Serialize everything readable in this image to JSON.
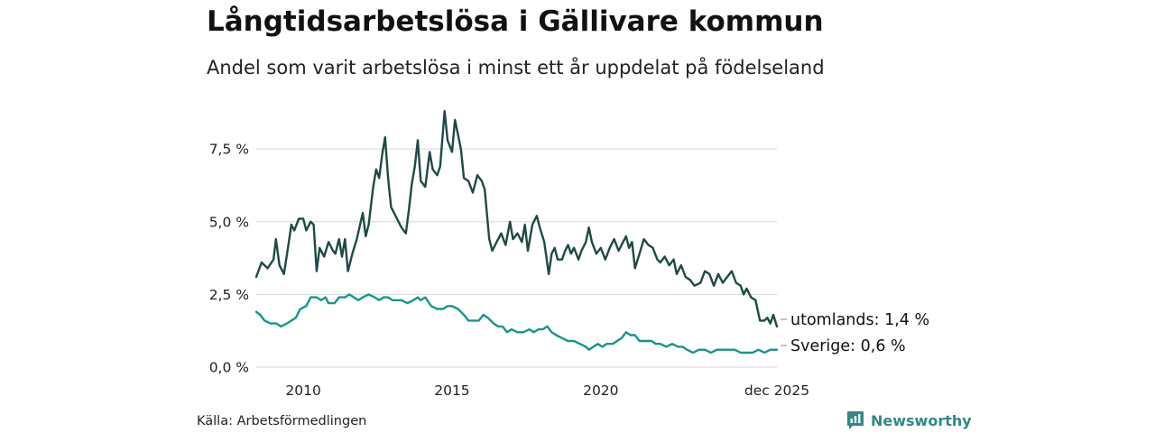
{
  "title": "Långtidsarbetslösa i Gällivare kommun",
  "subtitle": "Andel som varit arbetslösa i minst ett år uppdelat på födelseland",
  "source": "Källa: Arbetsförmedlingen",
  "brand": "Newsworthy",
  "colors": {
    "utomlands": "#1f4a45",
    "sverige": "#13978a",
    "grid": "#dddddd",
    "brand": "#2f8a83"
  },
  "chart_data": {
    "type": "line",
    "title": "Långtidsarbetslösa i Gällivare kommun",
    "subtitle": "Andel som varit arbetslösa i minst ett år uppdelat på födelseland",
    "xlabel": "",
    "ylabel": "",
    "xlim": [
      2008.42,
      2025.92
    ],
    "ylim": [
      0,
      8.9
    ],
    "x_ticks": [
      {
        "value": 2010,
        "label": "2010"
      },
      {
        "value": 2015,
        "label": "2015"
      },
      {
        "value": 2020,
        "label": "2020"
      },
      {
        "value": 2025.92,
        "label": "dec 2025"
      }
    ],
    "y_ticks": [
      {
        "value": 0,
        "label": "0,0 %"
      },
      {
        "value": 2.5,
        "label": "2,5 %"
      },
      {
        "value": 5.0,
        "label": "5,0 %"
      },
      {
        "value": 7.5,
        "label": "7,5 %"
      }
    ],
    "grid": true,
    "series": [
      {
        "name": "utomlands",
        "end_label": "utomlands: 1,4 %",
        "color": "#1f4a45",
        "points": [
          [
            2008.42,
            3.1
          ],
          [
            2008.6,
            3.6
          ],
          [
            2008.8,
            3.4
          ],
          [
            2009.0,
            3.7
          ],
          [
            2009.08,
            4.4
          ],
          [
            2009.2,
            3.5
          ],
          [
            2009.35,
            3.2
          ],
          [
            2009.5,
            4.2
          ],
          [
            2009.6,
            4.9
          ],
          [
            2009.7,
            4.7
          ],
          [
            2009.85,
            5.1
          ],
          [
            2010.0,
            5.1
          ],
          [
            2010.1,
            4.7
          ],
          [
            2010.25,
            5.0
          ],
          [
            2010.35,
            4.9
          ],
          [
            2010.45,
            3.3
          ],
          [
            2010.55,
            4.1
          ],
          [
            2010.7,
            3.8
          ],
          [
            2010.85,
            4.3
          ],
          [
            2011.0,
            4.0
          ],
          [
            2011.08,
            3.9
          ],
          [
            2011.2,
            4.4
          ],
          [
            2011.3,
            3.8
          ],
          [
            2011.4,
            4.4
          ],
          [
            2011.5,
            3.3
          ],
          [
            2011.65,
            3.9
          ],
          [
            2011.8,
            4.4
          ],
          [
            2012.0,
            5.3
          ],
          [
            2012.1,
            4.5
          ],
          [
            2012.2,
            4.9
          ],
          [
            2012.35,
            6.2
          ],
          [
            2012.45,
            6.8
          ],
          [
            2012.55,
            6.5
          ],
          [
            2012.65,
            7.3
          ],
          [
            2012.75,
            7.9
          ],
          [
            2012.85,
            6.5
          ],
          [
            2012.95,
            5.5
          ],
          [
            2013.05,
            5.3
          ],
          [
            2013.15,
            5.1
          ],
          [
            2013.3,
            4.8
          ],
          [
            2013.45,
            4.6
          ],
          [
            2013.55,
            5.4
          ],
          [
            2013.65,
            6.3
          ],
          [
            2013.75,
            6.9
          ],
          [
            2013.85,
            7.8
          ],
          [
            2013.95,
            6.4
          ],
          [
            2014.1,
            6.2
          ],
          [
            2014.25,
            7.4
          ],
          [
            2014.35,
            6.8
          ],
          [
            2014.5,
            6.6
          ],
          [
            2014.6,
            6.9
          ],
          [
            2014.75,
            8.8
          ],
          [
            2014.85,
            7.8
          ],
          [
            2015.0,
            7.4
          ],
          [
            2015.1,
            8.5
          ],
          [
            2015.2,
            8.0
          ],
          [
            2015.3,
            7.5
          ],
          [
            2015.4,
            6.5
          ],
          [
            2015.55,
            6.4
          ],
          [
            2015.7,
            6.0
          ],
          [
            2015.85,
            6.6
          ],
          [
            2016.0,
            6.4
          ],
          [
            2016.1,
            6.1
          ],
          [
            2016.25,
            4.4
          ],
          [
            2016.35,
            4.0
          ],
          [
            2016.5,
            4.3
          ],
          [
            2016.65,
            4.6
          ],
          [
            2016.8,
            4.2
          ],
          [
            2016.95,
            5.0
          ],
          [
            2017.05,
            4.4
          ],
          [
            2017.2,
            4.6
          ],
          [
            2017.35,
            4.3
          ],
          [
            2017.45,
            4.9
          ],
          [
            2017.55,
            4.0
          ],
          [
            2017.7,
            4.9
          ],
          [
            2017.85,
            5.2
          ],
          [
            2017.95,
            4.8
          ],
          [
            2018.1,
            4.3
          ],
          [
            2018.25,
            3.2
          ],
          [
            2018.35,
            3.9
          ],
          [
            2018.45,
            4.1
          ],
          [
            2018.55,
            3.7
          ],
          [
            2018.7,
            3.7
          ],
          [
            2018.8,
            4.0
          ],
          [
            2018.9,
            4.2
          ],
          [
            2019.0,
            3.9
          ],
          [
            2019.1,
            4.1
          ],
          [
            2019.25,
            3.7
          ],
          [
            2019.35,
            4.0
          ],
          [
            2019.5,
            4.3
          ],
          [
            2019.6,
            4.8
          ],
          [
            2019.7,
            4.3
          ],
          [
            2019.85,
            3.9
          ],
          [
            2020.0,
            4.1
          ],
          [
            2020.15,
            3.7
          ],
          [
            2020.3,
            4.1
          ],
          [
            2020.45,
            4.4
          ],
          [
            2020.6,
            4.0
          ],
          [
            2020.75,
            4.3
          ],
          [
            2020.85,
            4.5
          ],
          [
            2020.95,
            4.1
          ],
          [
            2021.05,
            4.3
          ],
          [
            2021.15,
            3.4
          ],
          [
            2021.3,
            3.9
          ],
          [
            2021.45,
            4.4
          ],
          [
            2021.6,
            4.2
          ],
          [
            2021.75,
            4.1
          ],
          [
            2021.9,
            3.7
          ],
          [
            2022.0,
            3.6
          ],
          [
            2022.15,
            3.8
          ],
          [
            2022.3,
            3.5
          ],
          [
            2022.45,
            3.7
          ],
          [
            2022.55,
            3.2
          ],
          [
            2022.7,
            3.5
          ],
          [
            2022.85,
            3.1
          ],
          [
            2023.0,
            3.0
          ],
          [
            2023.15,
            2.8
          ],
          [
            2023.35,
            2.9
          ],
          [
            2023.5,
            3.3
          ],
          [
            2023.65,
            3.2
          ],
          [
            2023.8,
            2.8
          ],
          [
            2023.95,
            3.2
          ],
          [
            2024.1,
            2.9
          ],
          [
            2024.25,
            3.1
          ],
          [
            2024.4,
            3.3
          ],
          [
            2024.55,
            2.9
          ],
          [
            2024.7,
            2.8
          ],
          [
            2024.8,
            2.5
          ],
          [
            2024.9,
            2.7
          ],
          [
            2025.05,
            2.4
          ],
          [
            2025.2,
            2.3
          ],
          [
            2025.35,
            1.6
          ],
          [
            2025.5,
            1.6
          ],
          [
            2025.6,
            1.7
          ],
          [
            2025.7,
            1.5
          ],
          [
            2025.8,
            1.8
          ],
          [
            2025.92,
            1.4
          ]
        ]
      },
      {
        "name": "Sverige",
        "end_label": "Sverige: 0,6 %",
        "color": "#13978a",
        "points": [
          [
            2008.42,
            1.9
          ],
          [
            2008.55,
            1.8
          ],
          [
            2008.7,
            1.6
          ],
          [
            2008.9,
            1.5
          ],
          [
            2009.1,
            1.5
          ],
          [
            2009.25,
            1.4
          ],
          [
            2009.45,
            1.5
          ],
          [
            2009.6,
            1.6
          ],
          [
            2009.75,
            1.7
          ],
          [
            2009.9,
            2.0
          ],
          [
            2010.1,
            2.1
          ],
          [
            2010.25,
            2.4
          ],
          [
            2010.45,
            2.4
          ],
          [
            2010.6,
            2.3
          ],
          [
            2010.75,
            2.4
          ],
          [
            2010.85,
            2.2
          ],
          [
            2011.05,
            2.2
          ],
          [
            2011.2,
            2.4
          ],
          [
            2011.4,
            2.4
          ],
          [
            2011.55,
            2.5
          ],
          [
            2011.7,
            2.4
          ],
          [
            2011.85,
            2.3
          ],
          [
            2012.0,
            2.4
          ],
          [
            2012.2,
            2.5
          ],
          [
            2012.4,
            2.4
          ],
          [
            2012.55,
            2.3
          ],
          [
            2012.7,
            2.4
          ],
          [
            2012.85,
            2.4
          ],
          [
            2013.0,
            2.3
          ],
          [
            2013.15,
            2.3
          ],
          [
            2013.3,
            2.3
          ],
          [
            2013.5,
            2.2
          ],
          [
            2013.7,
            2.3
          ],
          [
            2013.85,
            2.4
          ],
          [
            2013.95,
            2.3
          ],
          [
            2014.1,
            2.4
          ],
          [
            2014.3,
            2.1
          ],
          [
            2014.5,
            2.0
          ],
          [
            2014.7,
            2.0
          ],
          [
            2014.85,
            2.1
          ],
          [
            2015.0,
            2.1
          ],
          [
            2015.2,
            2.0
          ],
          [
            2015.4,
            1.8
          ],
          [
            2015.55,
            1.6
          ],
          [
            2015.7,
            1.6
          ],
          [
            2015.9,
            1.6
          ],
          [
            2016.05,
            1.8
          ],
          [
            2016.2,
            1.7
          ],
          [
            2016.4,
            1.5
          ],
          [
            2016.55,
            1.4
          ],
          [
            2016.7,
            1.4
          ],
          [
            2016.85,
            1.2
          ],
          [
            2017.0,
            1.3
          ],
          [
            2017.2,
            1.2
          ],
          [
            2017.4,
            1.2
          ],
          [
            2017.6,
            1.3
          ],
          [
            2017.75,
            1.2
          ],
          [
            2017.9,
            1.3
          ],
          [
            2018.05,
            1.3
          ],
          [
            2018.2,
            1.4
          ],
          [
            2018.35,
            1.2
          ],
          [
            2018.5,
            1.1
          ],
          [
            2018.7,
            1.0
          ],
          [
            2018.9,
            0.9
          ],
          [
            2019.1,
            0.9
          ],
          [
            2019.3,
            0.8
          ],
          [
            2019.5,
            0.7
          ],
          [
            2019.6,
            0.6
          ],
          [
            2019.75,
            0.7
          ],
          [
            2019.9,
            0.8
          ],
          [
            2020.05,
            0.7
          ],
          [
            2020.2,
            0.8
          ],
          [
            2020.4,
            0.8
          ],
          [
            2020.55,
            0.9
          ],
          [
            2020.7,
            1.0
          ],
          [
            2020.85,
            1.2
          ],
          [
            2021.0,
            1.1
          ],
          [
            2021.15,
            1.1
          ],
          [
            2021.3,
            0.9
          ],
          [
            2021.5,
            0.9
          ],
          [
            2021.7,
            0.9
          ],
          [
            2021.85,
            0.8
          ],
          [
            2022.0,
            0.8
          ],
          [
            2022.2,
            0.7
          ],
          [
            2022.4,
            0.8
          ],
          [
            2022.6,
            0.7
          ],
          [
            2022.75,
            0.7
          ],
          [
            2022.9,
            0.6
          ],
          [
            2023.1,
            0.5
          ],
          [
            2023.3,
            0.6
          ],
          [
            2023.5,
            0.6
          ],
          [
            2023.7,
            0.5
          ],
          [
            2023.9,
            0.6
          ],
          [
            2024.1,
            0.6
          ],
          [
            2024.3,
            0.6
          ],
          [
            2024.5,
            0.6
          ],
          [
            2024.7,
            0.5
          ],
          [
            2024.9,
            0.5
          ],
          [
            2025.1,
            0.5
          ],
          [
            2025.3,
            0.6
          ],
          [
            2025.5,
            0.5
          ],
          [
            2025.7,
            0.6
          ],
          [
            2025.92,
            0.6
          ]
        ]
      }
    ]
  }
}
